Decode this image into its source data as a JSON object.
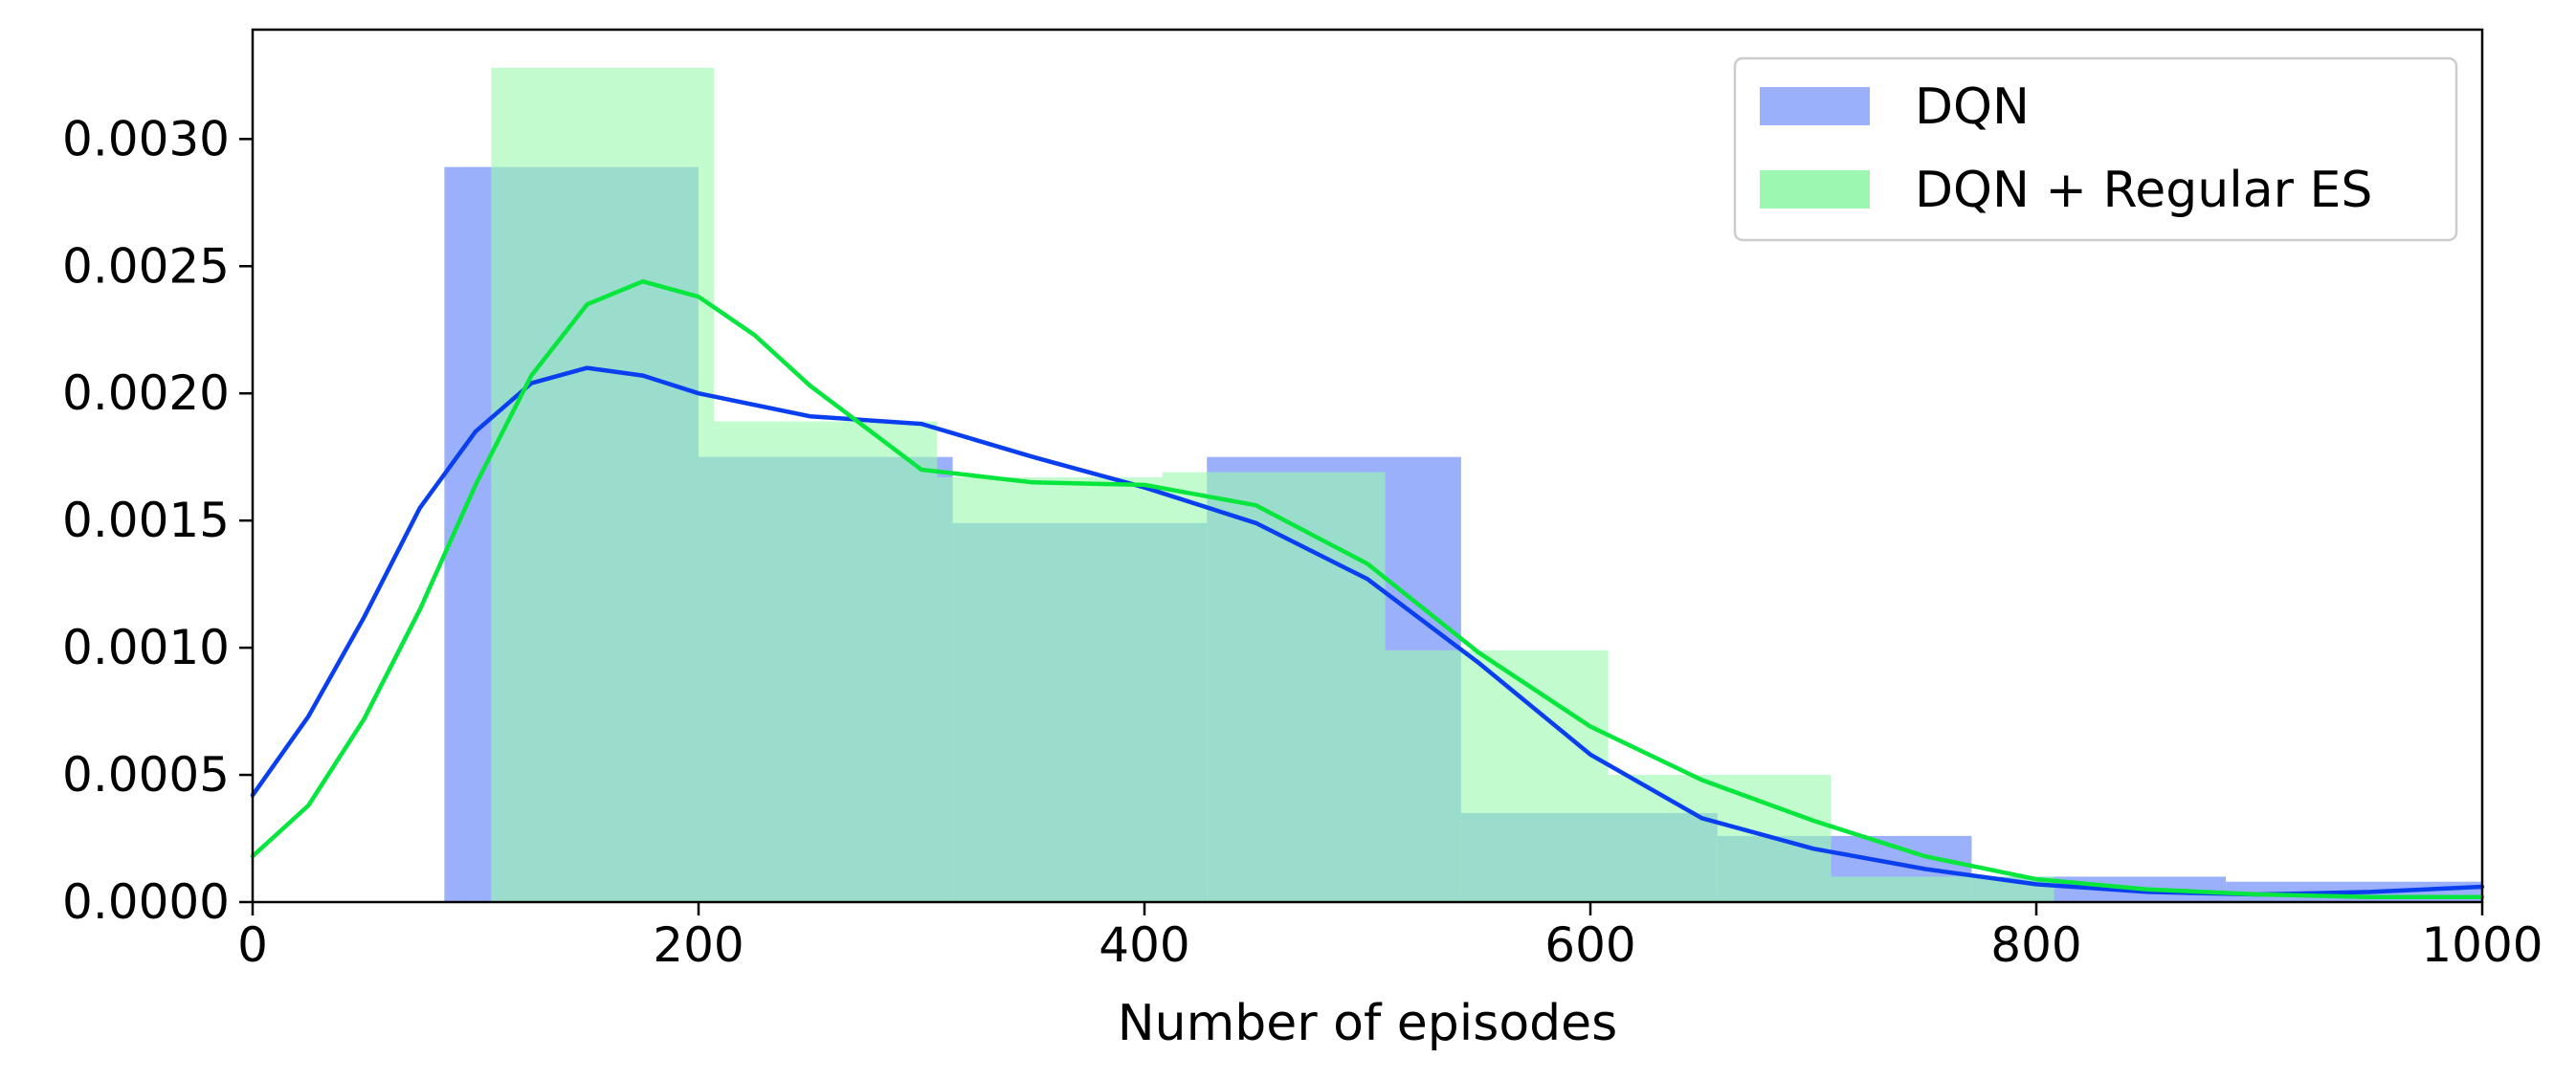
{
  "chart_data": {
    "type": "bar",
    "title": "",
    "xlabel": "Number of episodes",
    "ylabel": "",
    "xlim": [
      0,
      1000
    ],
    "ylim": [
      0,
      0.00343
    ],
    "xticks": [
      0,
      200,
      400,
      600,
      800,
      1000
    ],
    "xtick_labels": [
      "0",
      "200",
      "400",
      "600",
      "800",
      "1000"
    ],
    "yticks": [
      0,
      0.0005,
      0.001,
      0.0015,
      0.002,
      0.0025,
      0.003
    ],
    "ytick_labels": [
      "0.0000",
      "0.0005",
      "0.0010",
      "0.0015",
      "0.0020",
      "0.0025",
      "0.0030"
    ],
    "grid": false,
    "legend_position": "top-right",
    "series": [
      {
        "name": "DQN",
        "color": "#9ab0fb",
        "line_color": "#0a3ff0",
        "bin_edges": [
          86,
          200,
          314,
          428,
          542,
          657,
          771,
          885,
          1000
        ],
        "densities": [
          0.00289,
          0.00175,
          0.00149,
          0.00175,
          0.00035,
          0.00026,
          0.0001,
          8e-05
        ],
        "kde_x": [
          0,
          25,
          50,
          75,
          100,
          125,
          150,
          175,
          200,
          250,
          300,
          350,
          400,
          450,
          500,
          550,
          600,
          650,
          700,
          750,
          800,
          850,
          900,
          950,
          1000
        ],
        "kde_y": [
          0.00042,
          0.00073,
          0.00112,
          0.00155,
          0.00185,
          0.00204,
          0.0021,
          0.00207,
          0.002,
          0.00191,
          0.00188,
          0.00175,
          0.00163,
          0.00149,
          0.00127,
          0.00094,
          0.00058,
          0.00033,
          0.00021,
          0.00013,
          7e-05,
          4e-05,
          3e-05,
          4e-05,
          6e-05
        ]
      },
      {
        "name": "DQN + Regular ES",
        "color": "#9cf8b0",
        "line_color": "#06e63c",
        "bin_edges": [
          107,
          207,
          307,
          408,
          508,
          608,
          708,
          808,
          908
        ],
        "densities": [
          0.00328,
          0.00189,
          0.00167,
          0.00169,
          0.00099,
          0.0005,
          0.0001,
          0.0
        ],
        "kde_x": [
          0,
          25,
          50,
          75,
          100,
          125,
          150,
          175,
          200,
          225,
          250,
          300,
          350,
          400,
          450,
          500,
          550,
          600,
          650,
          700,
          750,
          800,
          850,
          900,
          950,
          1000
        ],
        "kde_y": [
          0.00018,
          0.00038,
          0.00072,
          0.00115,
          0.00164,
          0.00207,
          0.00235,
          0.00244,
          0.00238,
          0.00223,
          0.00203,
          0.0017,
          0.00165,
          0.00164,
          0.00156,
          0.00133,
          0.00098,
          0.00069,
          0.00048,
          0.00032,
          0.00018,
          9e-05,
          5e-05,
          3e-05,
          2e-05,
          2e-05
        ]
      }
    ]
  }
}
